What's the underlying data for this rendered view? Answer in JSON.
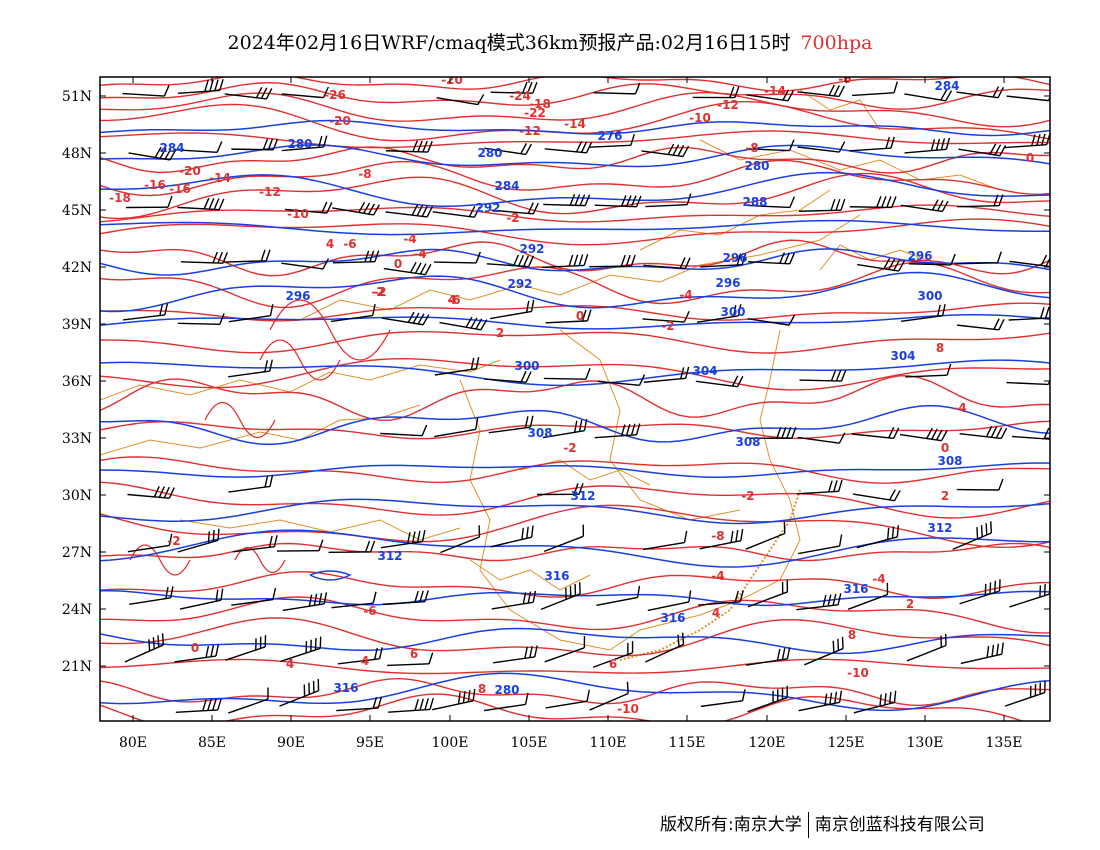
{
  "header": {
    "title": "2024年02月16日WRF/cmaq模式36km预报产品:02月16日15时",
    "level": "700hpa"
  },
  "axes": {
    "lat_labels": [
      "51N",
      "48N",
      "45N",
      "42N",
      "39N",
      "36N",
      "33N",
      "30N",
      "27N",
      "24N",
      "21N"
    ],
    "lon_labels": [
      "80E",
      "85E",
      "90E",
      "95E",
      "100E",
      "105E",
      "110E",
      "115E",
      "120E",
      "125E",
      "130E",
      "135E"
    ]
  },
  "colors": {
    "temperature_contour": "#e03030",
    "height_contour": "#1a3fe0",
    "boundaries": "#e0902a",
    "wind_barb": "#000000"
  },
  "height_labels": [
    "284",
    "280",
    "280",
    "276",
    "280",
    "284",
    "288",
    "292",
    "292",
    "296",
    "296",
    "292",
    "296",
    "296",
    "300",
    "300",
    "304",
    "300",
    "304",
    "308",
    "308",
    "308",
    "312",
    "312",
    "312",
    "316",
    "316",
    "316",
    "316",
    "280",
    "284"
  ],
  "temp_labels": [
    "-26",
    "-20",
    "-24",
    "-22",
    "-18",
    "-20",
    "-12",
    "-14",
    "-12",
    "-10",
    "-14",
    "-16",
    "-8",
    "-20",
    "-16",
    "-14",
    "-12",
    "-10",
    "-8",
    "-18",
    "-6",
    "-4",
    "-2",
    "-2",
    "-6",
    "-4",
    "0",
    "-2",
    "2",
    "-4",
    "0",
    "-2",
    "4",
    "-2",
    "-4",
    "0",
    "2",
    "4",
    "-2",
    "-4",
    "-2",
    "-6",
    "0",
    "4",
    "4",
    "6",
    "8",
    "6",
    "4",
    "8",
    "8",
    "-4",
    "-10",
    "-10",
    "2",
    "0",
    "-6",
    "-8"
  ],
  "footer": {
    "copyright_left": "版权所有:南京大学",
    "copyright_right": "南京创蓝科技有限公司"
  }
}
